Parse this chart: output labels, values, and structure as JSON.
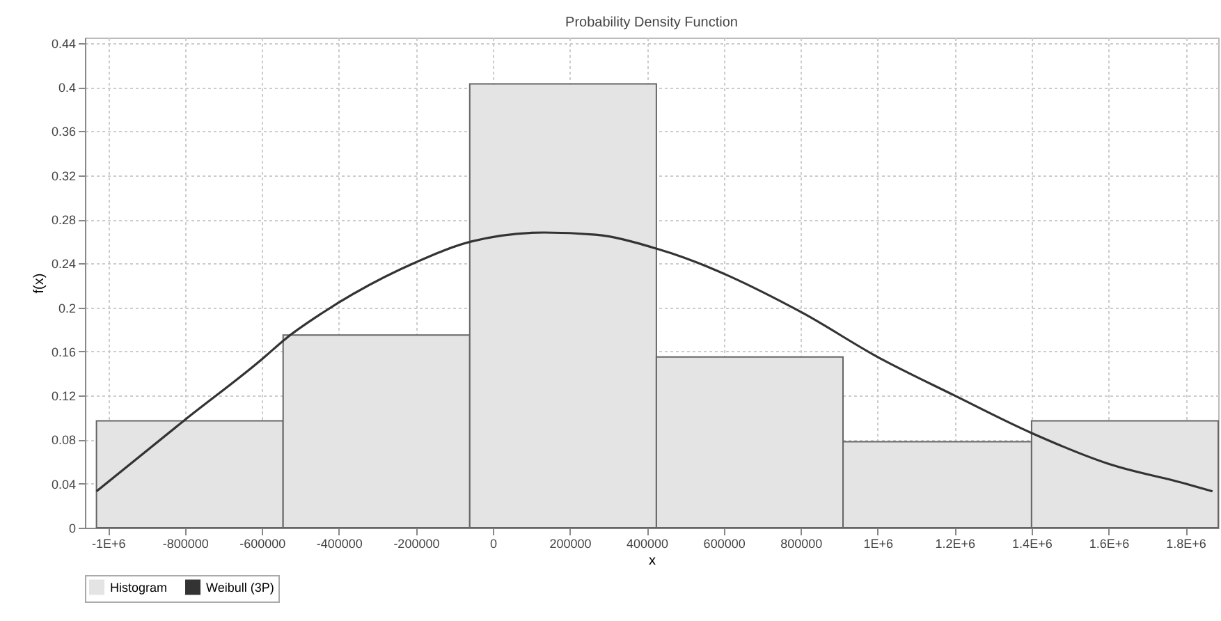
{
  "chart_data": {
    "type": "histogram",
    "title": "Probability Density Function",
    "xlabel": "x",
    "ylabel": "f(x)",
    "xlim": [
      -1060000,
      1885000
    ],
    "ylim": [
      0,
      0.445
    ],
    "xticks": [
      {
        "value": -1000000,
        "label": "-1E+6"
      },
      -800000,
      -600000,
      -400000,
      -200000,
      0,
      200000,
      400000,
      600000,
      800000,
      {
        "value": 1000000,
        "label": "1E+6"
      },
      {
        "value": 1200000,
        "label": "1.2E+6"
      },
      {
        "value": 1400000,
        "label": "1.4E+6"
      },
      {
        "value": 1600000,
        "label": "1.6E+6"
      },
      {
        "value": 1800000,
        "label": "1.8E+6"
      }
    ],
    "yticks": [
      0,
      0.04,
      0.08,
      0.12,
      0.16,
      0.2,
      0.24,
      0.28,
      0.32,
      0.36,
      0.4,
      0.44
    ],
    "grid": true,
    "legend": "bottom",
    "series": [
      {
        "name": "Histogram",
        "color": "#e4e4e4",
        "bins": [
          -1030000,
          -545000,
          -60000,
          425000,
          910000,
          1400000,
          1885000
        ],
        "values": [
          0.097,
          0.175,
          0.403,
          0.155,
          0.078,
          0.097
        ]
      },
      {
        "name": "Weibull (3P)",
        "type": "line",
        "color": "#333333",
        "x": [
          -1030000,
          -800000,
          -600000,
          -537000,
          -443000,
          -200000,
          -54000,
          133000,
          267000,
          429000,
          800000,
          1000000,
          1200000,
          1400000,
          1600000,
          1800000,
          1870000
        ],
        "values": [
          0.033,
          0.098,
          0.153,
          0.172,
          0.195,
          0.241,
          0.26,
          0.268,
          0.266,
          0.253,
          0.196,
          0.155,
          0.12,
          0.086,
          0.058,
          0.04,
          0.033
        ]
      }
    ]
  }
}
